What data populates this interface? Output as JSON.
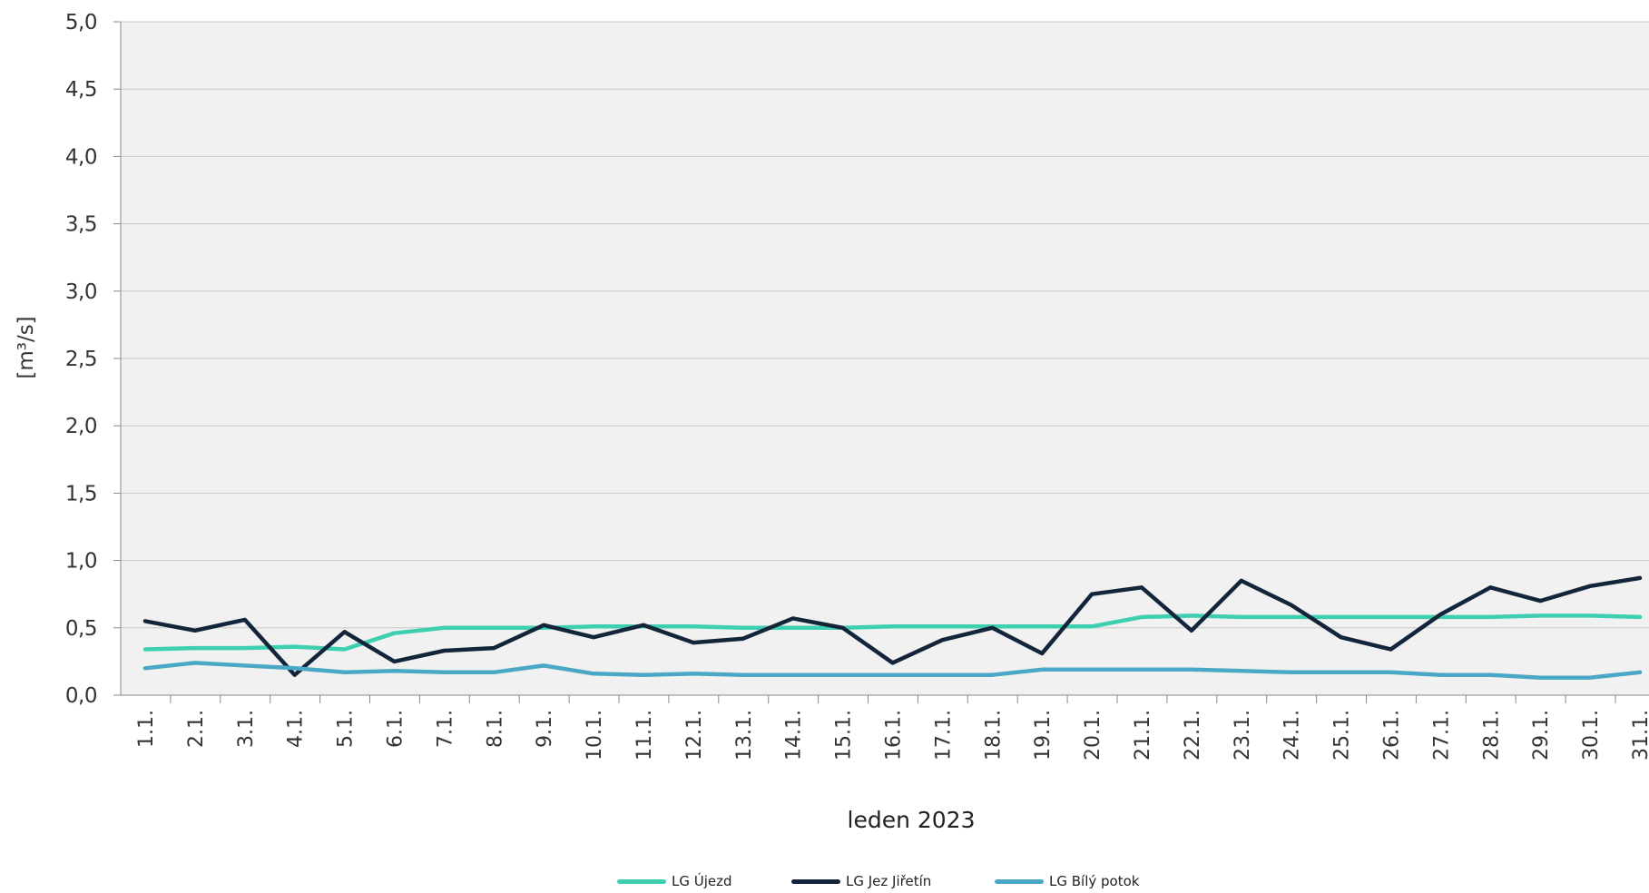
{
  "chart_data": {
    "type": "line",
    "xlabel": "leden 2023",
    "ylabel": "[m³/s]",
    "ylim": [
      0,
      5
    ],
    "yticks": [
      "0,0",
      "0,5",
      "1,0",
      "1,5",
      "2,0",
      "2,5",
      "3,0",
      "3,5",
      "4,0",
      "4,5",
      "5,0"
    ],
    "grid": true,
    "legend_position": "bottom",
    "categories": [
      "1.1.",
      "2.1.",
      "3.1.",
      "4.1.",
      "5.1.",
      "6.1.",
      "7.1.",
      "8.1.",
      "9.1.",
      "10.1.",
      "11.1.",
      "12.1.",
      "13.1.",
      "14.1.",
      "15.1.",
      "16.1.",
      "17.1.",
      "18.1.",
      "19.1.",
      "20.1.",
      "21.1.",
      "22.1.",
      "23.1.",
      "24.1.",
      "25.1.",
      "26.1.",
      "27.1.",
      "28.1.",
      "29.1.",
      "30.1.",
      "31.1."
    ],
    "series": [
      {
        "name": "LG Újezd",
        "color": "#3dcfb0",
        "values": [
          0.34,
          0.35,
          0.35,
          0.36,
          0.34,
          0.46,
          0.5,
          0.5,
          0.5,
          0.51,
          0.51,
          0.51,
          0.5,
          0.5,
          0.5,
          0.51,
          0.51,
          0.51,
          0.51,
          0.51,
          0.58,
          0.59,
          0.58,
          0.58,
          0.58,
          0.58,
          0.58,
          0.58,
          0.59,
          0.59,
          0.58
        ]
      },
      {
        "name": "LG Jez Jiřetín",
        "color": "#13253a",
        "values": [
          0.55,
          0.48,
          0.56,
          0.15,
          0.47,
          0.25,
          0.33,
          0.35,
          0.52,
          0.43,
          0.52,
          0.39,
          0.42,
          0.57,
          0.5,
          0.24,
          0.41,
          0.5,
          0.31,
          0.75,
          0.8,
          0.48,
          0.85,
          0.67,
          0.43,
          0.34,
          0.6,
          0.8,
          0.7,
          0.81,
          0.87
        ]
      },
      {
        "name": "LG Bílý potok",
        "color": "#4aa8c6",
        "values": [
          0.2,
          0.24,
          0.22,
          0.2,
          0.17,
          0.18,
          0.17,
          0.17,
          0.22,
          0.16,
          0.15,
          0.16,
          0.15,
          0.15,
          0.15,
          0.15,
          0.15,
          0.15,
          0.19,
          0.19,
          0.19,
          0.19,
          0.18,
          0.17,
          0.17,
          0.17,
          0.15,
          0.15,
          0.13,
          0.13,
          0.17
        ]
      }
    ]
  }
}
